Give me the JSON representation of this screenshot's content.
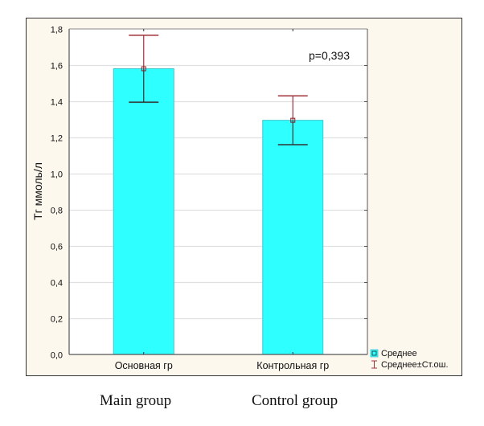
{
  "chart_data": {
    "type": "bar",
    "categories": [
      "Основная гр",
      "Контрольная гр"
    ],
    "series": [
      {
        "name": "Среднее",
        "values": [
          1.58,
          1.295
        ],
        "error_lower": [
          1.395,
          1.16
        ],
        "error_upper": [
          1.765,
          1.43
        ]
      }
    ],
    "ylabel": "Тг ммоль/л",
    "xlabel": "",
    "ylim": [
      0,
      1.8
    ],
    "yticks": [
      0.0,
      0.2,
      0.4,
      0.6,
      0.8,
      1.0,
      1.2,
      1.4,
      1.6,
      1.8
    ],
    "ytick_labels": [
      "0,0",
      "0,2",
      "0,4",
      "0,6",
      "0,8",
      "1,0",
      "1,2",
      "1,4",
      "1,6",
      "1,8"
    ],
    "grid": true,
    "annotation": "p=0,393",
    "legend": {
      "placement": "bottom-right",
      "entries": [
        {
          "label": "Среднее",
          "marker": "square"
        },
        {
          "label": "Среднее±Ст.ош.",
          "marker": "whisker"
        }
      ]
    },
    "colors": {
      "bar_fill": "#2EFFFF",
      "bar_edge": "#3FC7D0",
      "whisker_upper": "#A0323A",
      "whisker_lower": "#333333",
      "panel": "#FDF8EE",
      "grid": "#E0E0E0"
    }
  },
  "captions": [
    "Main group",
    "Control group"
  ]
}
